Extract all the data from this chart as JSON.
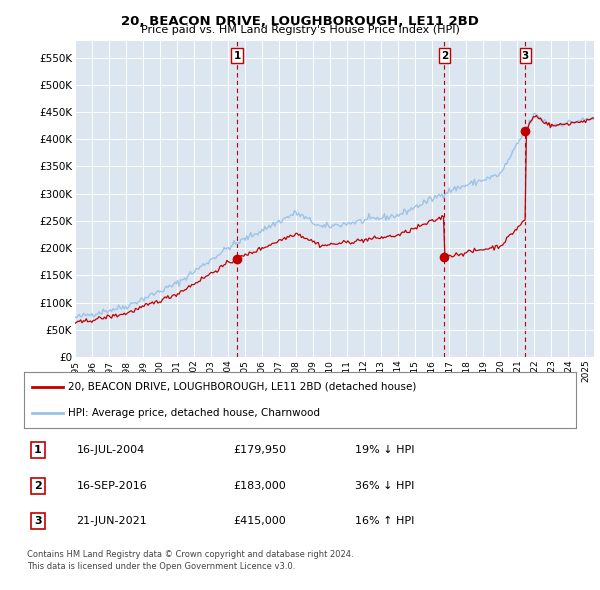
{
  "title": "20, BEACON DRIVE, LOUGHBOROUGH, LE11 2BD",
  "subtitle": "Price paid vs. HM Land Registry's House Price Index (HPI)",
  "ylabel_ticks": [
    "£0",
    "£50K",
    "£100K",
    "£150K",
    "£200K",
    "£250K",
    "£300K",
    "£350K",
    "£400K",
    "£450K",
    "£500K",
    "£550K"
  ],
  "ytick_values": [
    0,
    50000,
    100000,
    150000,
    200000,
    250000,
    300000,
    350000,
    400000,
    450000,
    500000,
    550000
  ],
  "ylim": [
    0,
    580000
  ],
  "xlim_start": 1995.0,
  "xlim_end": 2025.5,
  "xtick_years": [
    1995,
    1996,
    1997,
    1998,
    1999,
    2000,
    2001,
    2002,
    2003,
    2004,
    2005,
    2006,
    2007,
    2008,
    2009,
    2010,
    2011,
    2012,
    2013,
    2014,
    2015,
    2016,
    2017,
    2018,
    2019,
    2020,
    2021,
    2022,
    2023,
    2024,
    2025
  ],
  "sale_dates": [
    2004.54,
    2016.71,
    2021.47
  ],
  "sale_prices": [
    179950,
    183000,
    415000
  ],
  "sale_labels": [
    "1",
    "2",
    "3"
  ],
  "hpi_color": "#9dc3e6",
  "price_color": "#c00000",
  "chart_bg": "#dce6f1",
  "legend_price_label": "20, BEACON DRIVE, LOUGHBOROUGH, LE11 2BD (detached house)",
  "legend_hpi_label": "HPI: Average price, detached house, Charnwood",
  "table_rows": [
    {
      "num": "1",
      "date": "16-JUL-2004",
      "price": "£179,950",
      "hpi": "19% ↓ HPI"
    },
    {
      "num": "2",
      "date": "16-SEP-2016",
      "price": "£183,000",
      "hpi": "36% ↓ HPI"
    },
    {
      "num": "3",
      "date": "21-JUN-2021",
      "price": "£415,000",
      "hpi": "16% ↑ HPI"
    }
  ],
  "footnote1": "Contains HM Land Registry data © Crown copyright and database right 2024.",
  "footnote2": "This data is licensed under the Open Government Licence v3.0.",
  "background_color": "#ffffff",
  "grid_color": "#ffffff"
}
